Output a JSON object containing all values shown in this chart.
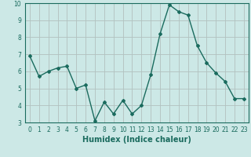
{
  "x": [
    0,
    1,
    2,
    3,
    4,
    5,
    6,
    7,
    8,
    9,
    10,
    11,
    12,
    13,
    14,
    15,
    16,
    17,
    18,
    19,
    20,
    21,
    22,
    23
  ],
  "y": [
    6.9,
    5.7,
    6.0,
    6.2,
    6.3,
    5.0,
    5.2,
    3.1,
    4.2,
    3.5,
    4.3,
    3.5,
    4.0,
    5.8,
    8.2,
    9.9,
    9.5,
    9.3,
    7.5,
    6.5,
    5.9,
    5.4,
    4.4,
    4.4
  ],
  "line_color": "#1a6b5e",
  "bg_color": "#cce8e6",
  "grid_color_major": "#b8d8d5",
  "grid_color_minor": "#d4ecea",
  "xlabel": "Humidex (Indice chaleur)",
  "ylim": [
    3,
    10
  ],
  "xlim": [
    -0.5,
    23.5
  ],
  "yticks": [
    3,
    4,
    5,
    6,
    7,
    8,
    9,
    10
  ],
  "xticks": [
    0,
    1,
    2,
    3,
    4,
    5,
    6,
    7,
    8,
    9,
    10,
    11,
    12,
    13,
    14,
    15,
    16,
    17,
    18,
    19,
    20,
    21,
    22,
    23
  ],
  "tick_fontsize": 5.5,
  "xlabel_fontsize": 7,
  "marker": "D",
  "markersize": 2.0,
  "linewidth": 1.0
}
